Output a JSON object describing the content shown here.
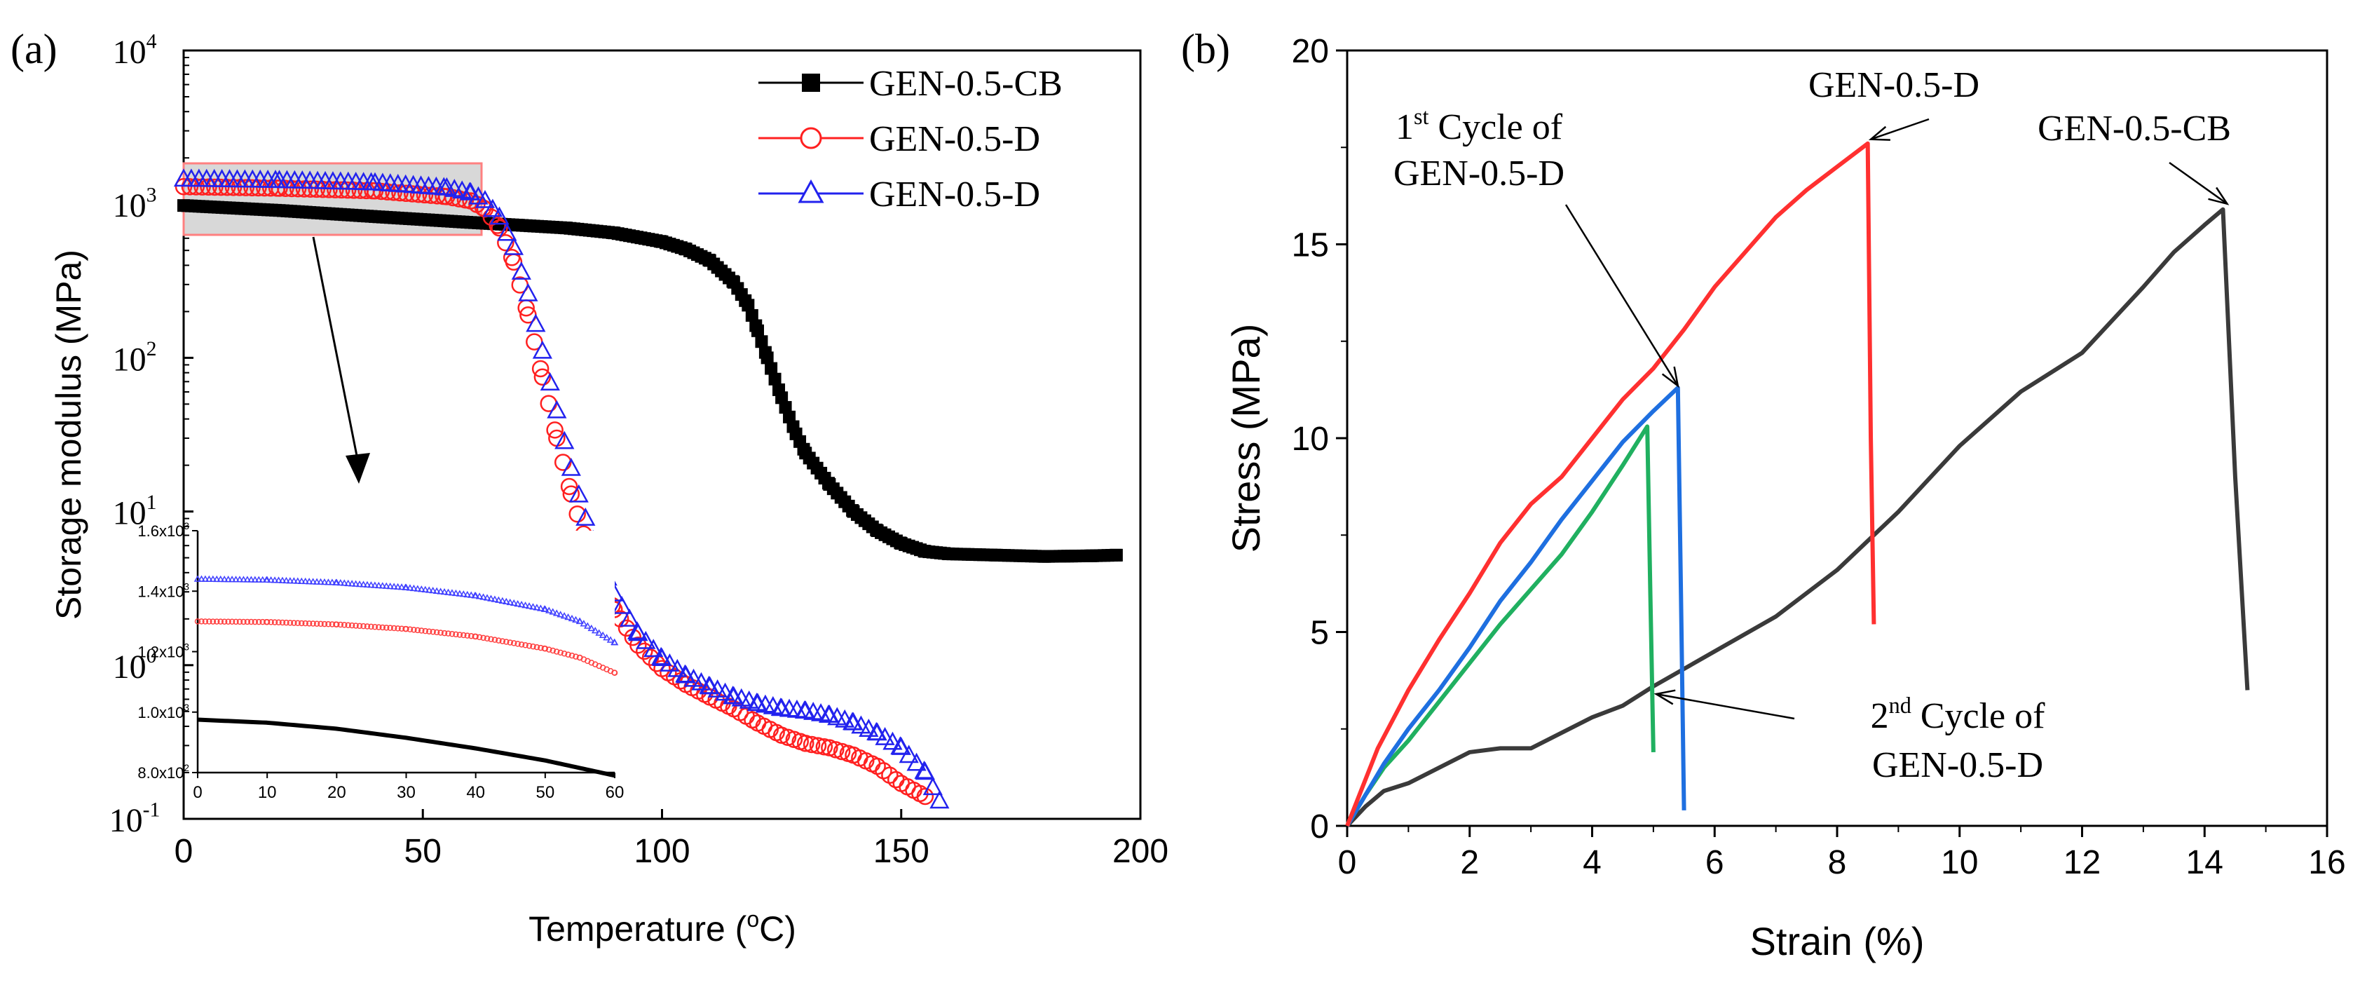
{
  "chart_data": [
    {
      "panel_label": "(a)",
      "type": "scatter",
      "title": "",
      "xlabel": "Temperature (",
      "xlabel_sup": "o",
      "xlabel_tail": "C)",
      "ylabel": "Storage modulus (MPa)",
      "yscale": "log",
      "xlim": [
        0,
        200
      ],
      "ylim": [
        0.1,
        10000
      ],
      "xticks": [
        "0",
        "50",
        "100",
        "150",
        "200"
      ],
      "yticks": [
        {
          "base": "10",
          "exp": "-1"
        },
        {
          "base": "10",
          "exp": "0"
        },
        {
          "base": "10",
          "exp": "1"
        },
        {
          "base": "10",
          "exp": "2"
        },
        {
          "base": "10",
          "exp": "3"
        },
        {
          "base": "10",
          "exp": "4"
        }
      ],
      "legend_position": "top-right",
      "series": [
        {
          "name": "GEN-0.5-CB",
          "color": "#000000",
          "marker": "filled-square",
          "x": [
            0,
            20,
            40,
            60,
            70,
            80,
            90,
            100,
            105,
            110,
            115,
            118,
            120,
            122,
            125,
            128,
            130,
            135,
            140,
            145,
            150,
            155,
            160,
            170,
            180,
            190,
            195
          ],
          "y": [
            980,
            910,
            830,
            760,
            730,
            700,
            650,
            570,
            510,
            430,
            310,
            220,
            150,
            100,
            55,
            32,
            24,
            15,
            10,
            7.5,
            6.2,
            5.5,
            5.3,
            5.2,
            5.1,
            5.15,
            5.2
          ]
        },
        {
          "name": "GEN-0.5-D",
          "color": "#ff2020",
          "marker": "open-circle",
          "x": [
            0,
            20,
            40,
            55,
            60,
            63,
            66,
            69,
            72,
            75,
            78,
            81,
            84,
            87,
            90,
            95,
            100,
            105,
            110,
            115,
            120,
            125,
            130,
            135,
            140,
            145,
            150,
            155
          ],
          "y": [
            1300,
            1270,
            1220,
            1120,
            1050,
            930,
            700,
            420,
            190,
            75,
            30,
            13,
            6.5,
            3.6,
            2.3,
            1.35,
            0.95,
            0.75,
            0.62,
            0.52,
            0.42,
            0.35,
            0.31,
            0.29,
            0.26,
            0.22,
            0.17,
            0.14
          ]
        },
        {
          "name": "GEN-0.5-D",
          "color": "#2222ee",
          "marker": "open-triangle",
          "x": [
            0,
            20,
            40,
            55,
            60,
            63,
            66,
            69,
            72,
            75,
            78,
            81,
            84,
            87,
            90,
            95,
            100,
            105,
            110,
            115,
            120,
            125,
            130,
            135,
            140,
            145,
            150,
            155,
            158
          ],
          "y": [
            1450,
            1420,
            1370,
            1270,
            1180,
            1050,
            820,
            520,
            260,
            110,
            45,
            19,
            9,
            4.8,
            2.9,
            1.6,
            1.1,
            0.85,
            0.72,
            0.62,
            0.56,
            0.52,
            0.5,
            0.47,
            0.42,
            0.36,
            0.29,
            0.2,
            0.13
          ]
        }
      ],
      "inset": {
        "xlim": [
          0,
          60
        ],
        "ylim": [
          800,
          1600
        ],
        "xticks": [
          "0",
          "10",
          "20",
          "30",
          "40",
          "50",
          "60"
        ],
        "yticks": [
          {
            "base": "8.0x10",
            "exp": "2"
          },
          {
            "base": "1.0x10",
            "exp": "3"
          },
          {
            "base": "1.2x10",
            "exp": "3"
          },
          {
            "base": "1.4x10",
            "exp": "3"
          },
          {
            "base": "1.6x10",
            "exp": "3"
          }
        ],
        "series": [
          {
            "name": "GEN-0.5-CB",
            "color": "#000000",
            "x": [
              0,
              10,
              20,
              30,
              40,
              50,
              60
            ],
            "y": [
              975,
              965,
              945,
              915,
              880,
              840,
              790
            ]
          },
          {
            "name": "GEN-0.5-D",
            "color": "#ff4040",
            "x": [
              0,
              10,
              20,
              30,
              40,
              50,
              55,
              60
            ],
            "y": [
              1300,
              1298,
              1290,
              1275,
              1250,
              1210,
              1180,
              1130
            ]
          },
          {
            "name": "GEN-0.5-D",
            "color": "#4040ff",
            "x": [
              0,
              10,
              20,
              30,
              40,
              50,
              55,
              60
            ],
            "y": [
              1440,
              1437,
              1428,
              1412,
              1385,
              1340,
              1300,
              1230
            ]
          }
        ]
      }
    },
    {
      "panel_label": "(b)",
      "type": "line",
      "title": "",
      "xlabel": "Strain (%)",
      "ylabel": "Stress (MPa)",
      "xlim": [
        0,
        16
      ],
      "ylim": [
        0,
        20
      ],
      "xticks": [
        "0",
        "2",
        "4",
        "6",
        "8",
        "10",
        "12",
        "14",
        "16"
      ],
      "yticks": [
        "0",
        "5",
        "10",
        "15",
        "20"
      ],
      "series": [
        {
          "name": "GEN-0.5-CB",
          "color": "#3a3a3a",
          "x": [
            0,
            0.3,
            0.6,
            1.0,
            1.5,
            2.0,
            2.5,
            3.0,
            3.5,
            4.0,
            4.5,
            5.0,
            6.0,
            7.0,
            8.0,
            9.0,
            10.0,
            11.0,
            12.0,
            13.0,
            13.5,
            14.0,
            14.3,
            14.5,
            14.7
          ],
          "y": [
            0,
            0.5,
            0.9,
            1.1,
            1.5,
            1.9,
            2.0,
            2.0,
            2.4,
            2.8,
            3.1,
            3.6,
            4.5,
            5.4,
            6.6,
            8.1,
            9.8,
            11.2,
            12.2,
            13.9,
            14.8,
            15.5,
            15.9,
            9.0,
            3.5
          ]
        },
        {
          "name": "GEN-0.5-D",
          "color": "#ff3030",
          "x": [
            0,
            0.2,
            0.5,
            1.0,
            1.5,
            2.0,
            2.5,
            3.0,
            3.5,
            4.0,
            4.5,
            5.0,
            5.5,
            6.0,
            6.5,
            7.0,
            7.5,
            8.0,
            8.5,
            8.55,
            8.6
          ],
          "y": [
            0,
            0.8,
            2.0,
            3.5,
            4.8,
            6.0,
            7.3,
            8.3,
            9.0,
            10.0,
            11.0,
            11.8,
            12.8,
            13.9,
            14.8,
            15.7,
            16.4,
            17.0,
            17.6,
            10.0,
            5.2
          ]
        },
        {
          "name": "1st Cycle of GEN-0.5-D",
          "color": "#1e6fe0",
          "x": [
            0,
            0.3,
            0.6,
            1.0,
            1.5,
            2.0,
            2.5,
            3.0,
            3.5,
            4.0,
            4.5,
            5.0,
            5.4,
            5.45,
            5.5
          ],
          "y": [
            0,
            0.8,
            1.6,
            2.5,
            3.5,
            4.6,
            5.8,
            6.8,
            7.9,
            8.9,
            9.9,
            10.7,
            11.3,
            6.0,
            0.4
          ]
        },
        {
          "name": "2nd Cycle of GEN-0.5-D",
          "color": "#20b060",
          "x": [
            0,
            0.3,
            0.6,
            1.0,
            1.5,
            2.0,
            2.5,
            3.0,
            3.5,
            4.0,
            4.5,
            4.9,
            4.95,
            5.0
          ],
          "y": [
            0,
            0.8,
            1.5,
            2.2,
            3.2,
            4.2,
            5.2,
            6.1,
            7.0,
            8.1,
            9.3,
            10.3,
            6.0,
            1.9
          ]
        }
      ],
      "annotations": [
        {
          "id": "d",
          "lines": [
            {
              "text": "GEN-0.5-D"
            }
          ]
        },
        {
          "id": "cb",
          "lines": [
            {
              "text": "GEN-0.5-CB"
            }
          ]
        },
        {
          "id": "first",
          "lines": [
            {
              "pre": "1",
              "sup": "st",
              "post": " Cycle of"
            },
            {
              "text": "GEN-0.5-D"
            }
          ]
        },
        {
          "id": "second",
          "lines": [
            {
              "pre": "2",
              "sup": "nd",
              "post": " Cycle of"
            },
            {
              "text": "GEN-0.5-D"
            }
          ]
        }
      ]
    }
  ]
}
